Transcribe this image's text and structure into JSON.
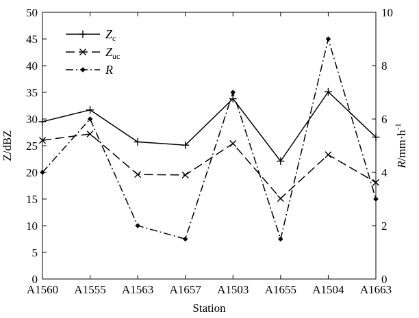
{
  "chart_data": {
    "type": "line",
    "categories": [
      "A1560",
      "A1555",
      "A1563",
      "A1657",
      "A1503",
      "A1655",
      "A1504",
      "A1663"
    ],
    "xlabel": "Station",
    "ylabel_left": "Z/dBZ",
    "ylabel_right": "R/mm·h⁻¹",
    "ylabel_right_parts": {
      "var": "R",
      "unit": "/mm·h",
      "exp": "-1"
    },
    "ylim_left": [
      0,
      50
    ],
    "yticks_left": [
      0,
      5,
      10,
      15,
      20,
      25,
      30,
      35,
      40,
      45,
      50
    ],
    "ylim_right": [
      0,
      10
    ],
    "yticks_right": [
      0,
      2,
      4,
      6,
      8,
      10
    ],
    "grid": false,
    "legend_position": "top-left",
    "series": [
      {
        "name": "Zc",
        "label_main": "Z",
        "label_sub": "c",
        "axis": "left",
        "line_style": "solid",
        "marker": "plus",
        "values": [
          29.5,
          31.7,
          25.7,
          25.1,
          33.8,
          22.1,
          35.1,
          26.6
        ]
      },
      {
        "name": "Zuc",
        "label_main": "Z",
        "label_sub": "uc",
        "axis": "left",
        "line_style": "dashed",
        "marker": "x",
        "values": [
          26.0,
          27.2,
          19.6,
          19.5,
          25.4,
          15.1,
          23.3,
          18.1
        ]
      },
      {
        "name": "R",
        "label_main": "R",
        "label_sub": "",
        "axis": "right",
        "line_style": "dashdot",
        "marker": "diamond",
        "values": [
          4.0,
          6.0,
          2.0,
          1.5,
          7.0,
          1.5,
          9.0,
          3.0
        ]
      }
    ]
  }
}
